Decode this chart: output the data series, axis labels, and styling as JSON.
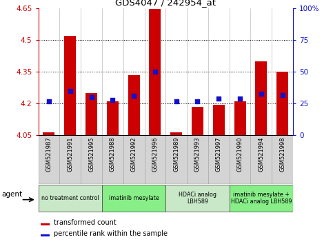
{
  "title": "GDS4047 / 242954_at",
  "samples": [
    "GSM521987",
    "GSM521991",
    "GSM521995",
    "GSM521988",
    "GSM521992",
    "GSM521996",
    "GSM521989",
    "GSM521993",
    "GSM521997",
    "GSM521990",
    "GSM521994",
    "GSM521998"
  ],
  "transformed_count": [
    4.065,
    4.52,
    4.25,
    4.21,
    4.335,
    4.648,
    4.065,
    4.185,
    4.195,
    4.21,
    4.4,
    4.35
  ],
  "percentile_rank": [
    27,
    35,
    30,
    28,
    31,
    50,
    27,
    27,
    29,
    29,
    33,
    32
  ],
  "ymin": 4.05,
  "ymax": 4.65,
  "yticks": [
    4.05,
    4.2,
    4.35,
    4.5,
    4.65
  ],
  "ytick_labels": [
    "4.05",
    "4.2",
    "4.35",
    "4.5",
    "4.65"
  ],
  "y2min": 0,
  "y2max": 100,
  "y2ticks": [
    0,
    25,
    50,
    75,
    100
  ],
  "y2tick_labels": [
    "0",
    "25",
    "50",
    "75",
    "100%"
  ],
  "bar_color": "#cc0000",
  "dot_color": "#1111cc",
  "agent_groups": [
    {
      "label": "no treatment control",
      "start": 0,
      "end": 3,
      "color": "#c8e8c8"
    },
    {
      "label": "imatinib mesylate",
      "start": 3,
      "end": 6,
      "color": "#88ee88"
    },
    {
      "label": "HDACi analog\nLBH589",
      "start": 6,
      "end": 9,
      "color": "#c8e8c8"
    },
    {
      "label": "imatinib mesylate +\nHDACi analog LBH589",
      "start": 9,
      "end": 12,
      "color": "#88ee88"
    }
  ],
  "agent_label": "agent",
  "legend_items": [
    {
      "label": "transformed count",
      "color": "#cc0000"
    },
    {
      "label": "percentile rank within the sample",
      "color": "#1111cc"
    }
  ],
  "bg_color": "#ffffff",
  "left_axis_color": "#cc0000",
  "right_axis_color": "#1111cc",
  "bar_width": 0.55,
  "grid_yticks": [
    4.2,
    4.35,
    4.5
  ],
  "sample_bg_color": "#d4d4d4",
  "sample_grid_color": "#aaaaaa"
}
